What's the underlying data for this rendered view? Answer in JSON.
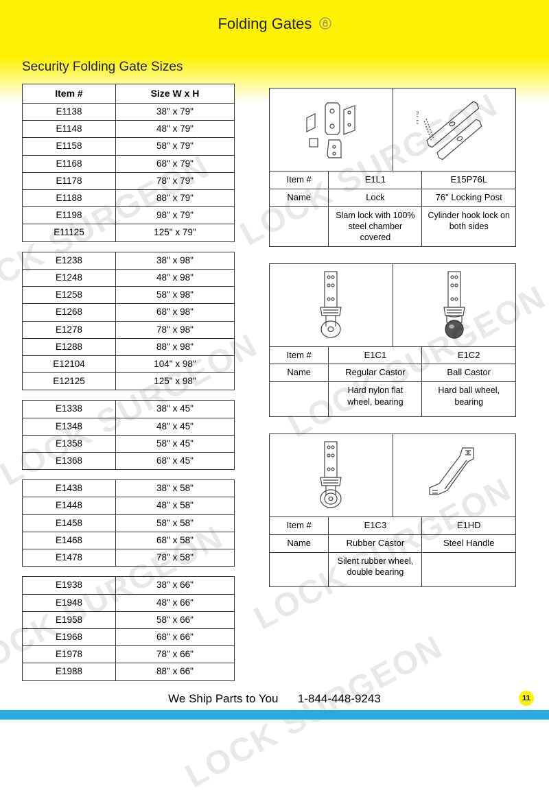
{
  "page": {
    "title": "Folding Gates",
    "subtitle": "Security Folding Gate Sizes",
    "footer_ship": "We Ship Parts to You",
    "footer_phone": "1-844-448-9243",
    "page_number": "11",
    "watermark_text": "LOCK SURGEON"
  },
  "colors": {
    "header_yellow": "#fff200",
    "footer_blue": "#29abe2",
    "border": "#333333",
    "text": "#222222",
    "watermark": "rgba(0,0,0,0.09)"
  },
  "size_table": {
    "header_item": "Item #",
    "header_size": "Size W x H",
    "groups": [
      [
        {
          "item": "E1138",
          "size": "38\" x 79\""
        },
        {
          "item": "E1148",
          "size": "48\" x 79\""
        },
        {
          "item": "E1158",
          "size": "58\" x 79\""
        },
        {
          "item": "E1168",
          "size": "68\" x 79\""
        },
        {
          "item": "E1178",
          "size": "78\" x 79\""
        },
        {
          "item": "E1188",
          "size": "88\" x 79\""
        },
        {
          "item": "E1198",
          "size": "98\" x 79\""
        },
        {
          "item": "E11125",
          "size": "125\" x 79\""
        }
      ],
      [
        {
          "item": "E1238",
          "size": "38\" x 98\""
        },
        {
          "item": "E1248",
          "size": "48\" x 98\""
        },
        {
          "item": "E1258",
          "size": "58\" x 98\""
        },
        {
          "item": "E1268",
          "size": "68\" x 98\""
        },
        {
          "item": "E1278",
          "size": "78\" x 98\""
        },
        {
          "item": "E1288",
          "size": "88\" x 98\""
        },
        {
          "item": "E12104",
          "size": "104\" x 98\""
        },
        {
          "item": "E12125",
          "size": "125\" x 98\""
        }
      ],
      [
        {
          "item": "E1338",
          "size": "38\" x 45\""
        },
        {
          "item": "E1348",
          "size": "48\" x 45\""
        },
        {
          "item": "E1358",
          "size": "58\" x 45\""
        },
        {
          "item": "E1368",
          "size": "68\" x 45\""
        }
      ],
      [
        {
          "item": "E1438",
          "size": "38\" x 58\""
        },
        {
          "item": "E1448",
          "size": "48\" x 58\""
        },
        {
          "item": "E1458",
          "size": "58\" x 58\""
        },
        {
          "item": "E1468",
          "size": "68\" x 58\""
        },
        {
          "item": "E1478",
          "size": "78\" x 58\""
        }
      ],
      [
        {
          "item": "E1938",
          "size": "38\" x 66\""
        },
        {
          "item": "E1948",
          "size": "48\" x 66\""
        },
        {
          "item": "E1958",
          "size": "58\" x 66\""
        },
        {
          "item": "E1968",
          "size": "68\" x 66\""
        },
        {
          "item": "E1978",
          "size": "78\" x 66\""
        },
        {
          "item": "E1988",
          "size": "88\" x 66\""
        }
      ]
    ]
  },
  "products": [
    {
      "row_item_label": "Item #",
      "row_name_label": "Name",
      "left": {
        "item": "E1L1",
        "name": "Lock",
        "desc": "Slam lock with 100% steel chamber covered",
        "icon": "lock-parts"
      },
      "right": {
        "item": "E15P76L",
        "name": "76\" Locking Post",
        "desc": "Cylinder hook lock on both sides",
        "icon": "locking-post",
        "dim_label": "H 76\""
      }
    },
    {
      "row_item_label": "Item #",
      "row_name_label": "Name",
      "left": {
        "item": "E1C1",
        "name": "Regular Castor",
        "desc": "Hard nylon flat wheel, bearing",
        "icon": "castor-flat"
      },
      "right": {
        "item": "E1C2",
        "name": "Ball Castor",
        "desc": "Hard ball wheel, bearing",
        "icon": "castor-ball"
      }
    },
    {
      "row_item_label": "Item #",
      "row_name_label": "Name",
      "left": {
        "item": "E1C3",
        "name": "Rubber Castor",
        "desc": "Silent rubber wheel, double bearing",
        "icon": "castor-rubber"
      },
      "right": {
        "item": "E1HD",
        "name": "Steel Handle",
        "desc": "",
        "icon": "steel-handle"
      }
    }
  ]
}
